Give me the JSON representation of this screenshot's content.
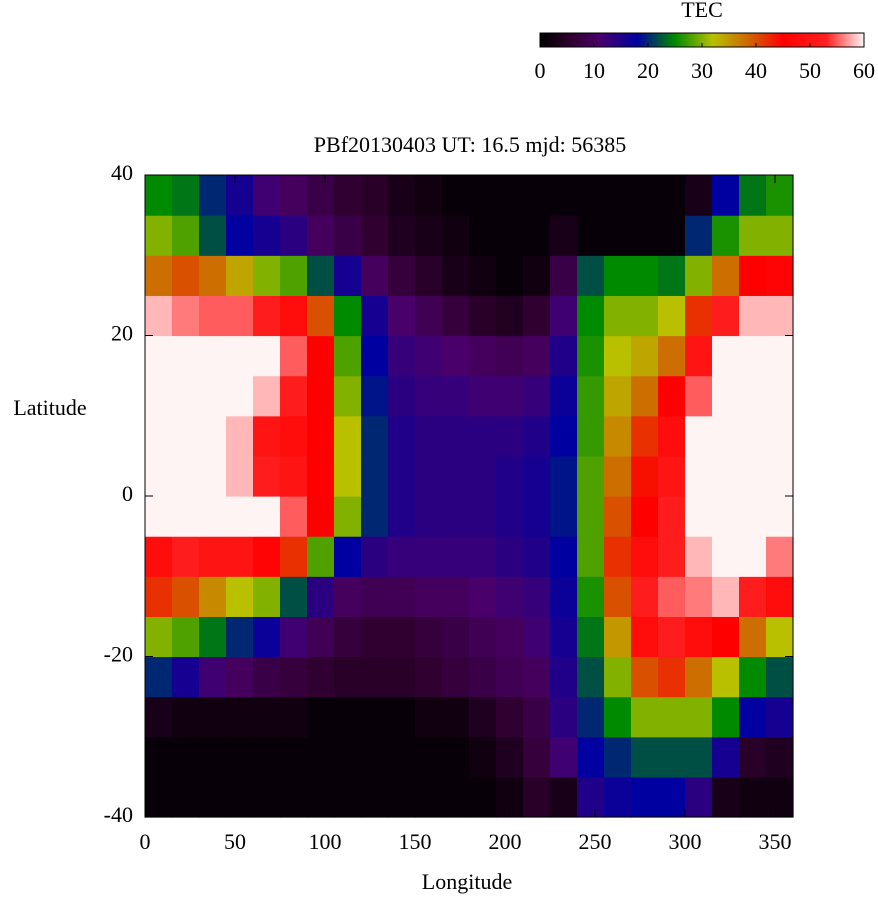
{
  "chart_data": {
    "type": "heatmap",
    "title": "PBf20130403  UT: 16.5  mjd: 56385",
    "x_label": "Longitude",
    "y_label": "Latitude",
    "xlim": [
      0,
      360
    ],
    "ylim": [
      -40,
      40
    ],
    "xticks": [
      0,
      50,
      100,
      150,
      200,
      250,
      300,
      350
    ],
    "yticks": [
      -40,
      -20,
      0,
      20,
      40
    ],
    "x": [
      7.5,
      22.5,
      37.5,
      52.5,
      67.5,
      82.5,
      97.5,
      112.5,
      127.5,
      142.5,
      157.5,
      172.5,
      187.5,
      202.5,
      217.5,
      232.5,
      247.5,
      262.5,
      277.5,
      292.5,
      307.5,
      322.5,
      337.5,
      352.5
    ],
    "y": [
      -37.5,
      -32.5,
      -27.5,
      -22.5,
      -17.5,
      -12.5,
      -7.5,
      -2.5,
      2.5,
      7.5,
      12.5,
      17.5,
      22.5,
      27.5,
      32.5,
      37.5
    ],
    "z": [
      [
        1,
        1,
        1,
        1,
        1,
        1,
        1,
        1,
        1,
        1,
        1,
        1,
        1,
        2,
        5,
        3,
        15,
        17,
        18,
        18,
        14,
        3,
        2,
        2
      ],
      [
        1,
        1,
        1,
        1,
        1,
        1,
        1,
        1,
        1,
        1,
        1,
        1,
        2,
        4,
        7,
        12,
        18,
        20,
        22,
        22,
        22,
        16,
        5,
        4
      ],
      [
        3,
        2,
        2,
        2,
        2,
        2,
        1,
        1,
        1,
        1,
        2,
        2,
        4,
        6,
        8,
        14,
        20,
        25,
        30,
        30,
        30,
        25,
        18,
        16
      ],
      [
        20,
        16,
        12,
        10,
        8,
        7,
        6,
        5,
        5,
        5,
        6,
        7,
        8,
        9,
        10,
        15,
        22,
        30,
        40,
        42,
        38,
        32,
        25,
        22
      ],
      [
        30,
        28,
        24,
        20,
        17,
        12,
        9,
        7,
        6,
        6,
        7,
        8,
        9,
        10,
        12,
        16,
        24,
        35,
        48,
        52,
        48,
        45,
        38,
        32
      ],
      [
        42,
        40,
        36,
        32,
        30,
        22,
        14,
        10,
        9,
        9,
        10,
        10,
        11,
        12,
        13,
        17,
        26,
        40,
        52,
        55,
        56,
        58,
        52,
        48
      ],
      [
        48,
        52,
        50,
        50,
        46,
        42,
        28,
        18,
        14,
        13,
        13,
        13,
        13,
        14,
        15,
        18,
        28,
        42,
        48,
        52,
        58,
        60,
        60,
        56
      ],
      [
        60,
        60,
        60,
        60,
        60,
        55,
        45,
        30,
        20,
        15,
        14,
        14,
        14,
        15,
        16,
        19,
        28,
        40,
        45,
        52,
        60,
        60,
        60,
        60
      ],
      [
        60,
        60,
        60,
        58,
        52,
        50,
        45,
        32,
        20,
        15,
        14,
        14,
        14,
        15,
        16,
        19,
        28,
        38,
        44,
        50,
        60,
        60,
        60,
        60
      ],
      [
        60,
        60,
        60,
        58,
        50,
        48,
        45,
        32,
        20,
        15,
        14,
        14,
        14,
        14,
        15,
        18,
        27,
        36,
        42,
        48,
        60,
        60,
        60,
        60
      ],
      [
        60,
        60,
        60,
        60,
        58,
        52,
        45,
        30,
        19,
        14,
        13,
        13,
        12,
        12,
        13,
        17,
        27,
        34,
        38,
        45,
        55,
        60,
        60,
        60
      ],
      [
        60,
        60,
        60,
        60,
        60,
        55,
        45,
        28,
        18,
        13,
        12,
        11,
        10,
        9,
        10,
        15,
        26,
        32,
        34,
        38,
        50,
        60,
        60,
        60
      ],
      [
        58,
        56,
        55,
        55,
        52,
        48,
        40,
        25,
        16,
        11,
        9,
        7,
        5,
        4,
        6,
        12,
        25,
        30,
        30,
        32,
        42,
        52,
        58,
        58
      ],
      [
        38,
        40,
        38,
        34,
        30,
        28,
        22,
        16,
        10,
        7,
        5,
        3,
        2,
        1,
        2,
        8,
        22,
        25,
        25,
        24,
        30,
        38,
        45,
        46
      ],
      [
        30,
        28,
        22,
        18,
        16,
        14,
        10,
        8,
        6,
        4,
        3,
        2,
        1,
        1,
        1,
        3,
        1,
        1,
        1,
        1,
        20,
        26,
        30,
        30
      ],
      [
        25,
        24,
        20,
        16,
        12,
        10,
        8,
        6,
        5,
        3,
        2,
        1,
        1,
        1,
        1,
        1,
        1,
        1,
        1,
        1,
        3,
        18,
        24,
        26
      ]
    ],
    "colorbar": {
      "title": "TEC",
      "lim": [
        0,
        60
      ],
      "ticks": [
        0,
        10,
        20,
        30,
        40,
        50,
        60
      ]
    },
    "colormap": [
      {
        "value": 0,
        "color": "#000000"
      },
      {
        "value": 6,
        "color": "#300030"
      },
      {
        "value": 11,
        "color": "#4a006a"
      },
      {
        "value": 18,
        "color": "#0000a0"
      },
      {
        "value": 25,
        "color": "#008a00"
      },
      {
        "value": 32,
        "color": "#b8c000"
      },
      {
        "value": 39,
        "color": "#d06000"
      },
      {
        "value": 45,
        "color": "#ff0000"
      },
      {
        "value": 53,
        "color": "#ff2020"
      },
      {
        "value": 60,
        "color": "#fff4f4"
      }
    ]
  }
}
